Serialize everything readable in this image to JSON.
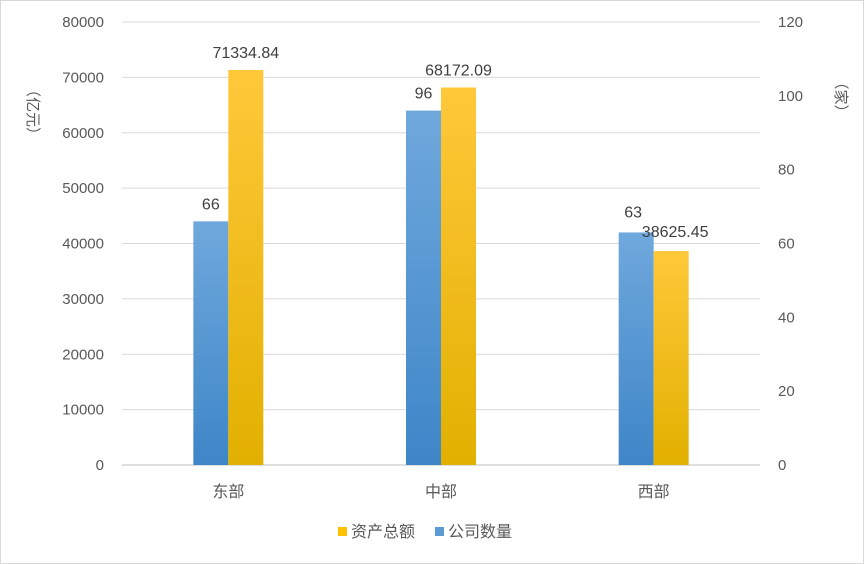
{
  "chart_data": {
    "type": "bar",
    "categories": [
      "东部",
      "中部",
      "西部"
    ],
    "series": [
      {
        "name": "公司数量",
        "axis": "right",
        "color": "#5B9BD5",
        "values": [
          66,
          96,
          63
        ],
        "labels": [
          "66",
          "96",
          "63"
        ]
      },
      {
        "name": "资产总额",
        "axis": "left",
        "color": "#FFC000",
        "values": [
          71334.84,
          68172.09,
          38625.45
        ],
        "labels": [
          "71334.84",
          "68172.09",
          "38625.45"
        ]
      }
    ],
    "y_left": {
      "unit_label": "（亿元）",
      "ylim": [
        0,
        80000
      ],
      "ticks": [
        "0",
        "10000",
        "20000",
        "30000",
        "40000",
        "50000",
        "60000",
        "70000",
        "80000"
      ]
    },
    "y_right": {
      "unit_label": "（家）",
      "ylim": [
        0,
        120
      ],
      "ticks": [
        "0",
        "20",
        "40",
        "60",
        "80",
        "100",
        "120"
      ]
    },
    "legend": {
      "position": "bottom",
      "items": [
        "资产总额",
        "公司数量"
      ]
    },
    "grid": true
  }
}
